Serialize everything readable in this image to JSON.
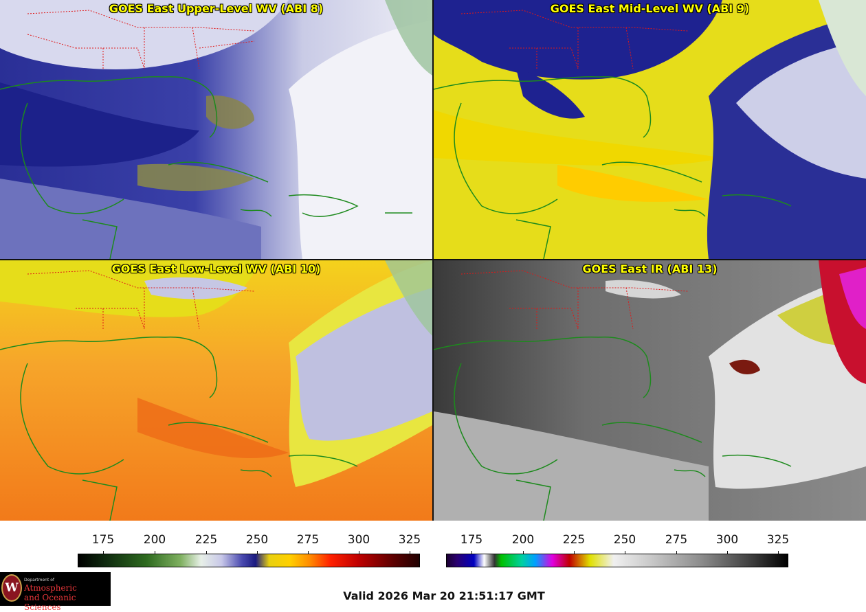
{
  "panels": [
    {
      "id": "upper",
      "title": "GOES East Upper-Level WV (ABI 8)"
    },
    {
      "id": "mid",
      "title": "GOES East Mid-Level WV (ABI 9)"
    },
    {
      "id": "low",
      "title": "GOES East Low-Level WV (ABI 10)"
    },
    {
      "id": "ir",
      "title": "GOES East IR (ABI 13)"
    }
  ],
  "colorbars": {
    "wv": {
      "ticks": [
        "175",
        "200",
        "225",
        "250",
        "275",
        "300",
        "325"
      ]
    },
    "ir": {
      "ticks": [
        "175",
        "200",
        "225",
        "250",
        "275",
        "300",
        "325"
      ]
    }
  },
  "logo": {
    "seal_letter": "W",
    "dept_line": "Department of",
    "line1": "Atmospheric",
    "line2": "and Oceanic Sciences"
  },
  "footer": {
    "valid_text": "Valid 2026 Mar 20 21:51:17 GMT"
  },
  "colors": {
    "wv_dry": "#ffd200",
    "wv_moist": "#1a1f8a",
    "wv_cloud": "#ececf4",
    "ir_gray": "#7a7a7a",
    "state_lines": "#e01818",
    "coastlines": "#1d8a1d",
    "title_text": "#ffff00"
  }
}
